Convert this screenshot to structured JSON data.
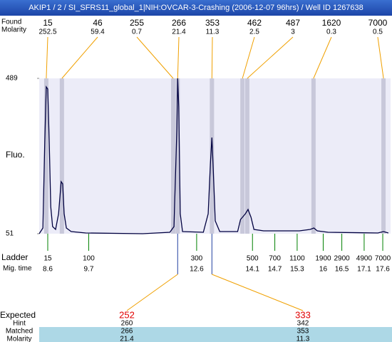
{
  "header": {
    "title": "AKIP1 / 2 / SI_SFRS11_global_1|NIH:OVCAR-3-Crashing (2006-12-07 96hrs) / Well ID 1267638"
  },
  "chart_data": {
    "type": "electropherogram",
    "y_label": "Fluo.",
    "ylim": [
      51,
      489
    ],
    "yticks": [
      51,
      489
    ],
    "xlim": [
      8.37,
      17.81
    ],
    "peaks": {
      "label": "Found",
      "molarity_label": "Molarity",
      "color": "#f0a000",
      "band_color": "#c8c8da",
      "sizes": [
        15,
        46,
        255,
        266,
        353,
        462,
        487,
        1620,
        7000
      ],
      "molarities": [
        252.5,
        59.4,
        0.7,
        21.4,
        11.3,
        2.5,
        3,
        0.3,
        0.5
      ],
      "times": [
        8.56,
        8.98,
        11.97,
        12.09,
        13.01,
        13.83,
        13.96,
        15.74,
        17.62
      ]
    },
    "trace": {
      "color": "#000040",
      "x": [
        8.37,
        8.47,
        8.52,
        8.56,
        8.6,
        8.64,
        8.68,
        8.73,
        8.81,
        8.89,
        8.96,
        9.0,
        9.04,
        9.1,
        9.23,
        9.62,
        11.15,
        11.88,
        11.99,
        12.07,
        12.09,
        12.12,
        12.16,
        12.22,
        12.78,
        12.91,
        12.97,
        13.01,
        13.04,
        13.1,
        13.22,
        13.7,
        13.78,
        13.83,
        13.91,
        13.98,
        14.06,
        14.14,
        14.4,
        15.36,
        15.65,
        15.75,
        15.84,
        16.13,
        17.47,
        17.62,
        17.75
      ],
      "values": [
        51,
        67.1,
        308.2,
        464.9,
        458.8,
        308.2,
        127.3,
        71.1,
        63.1,
        107.3,
        197.7,
        191.6,
        107.3,
        67.1,
        57,
        53,
        51,
        55,
        71.1,
        348.3,
        489,
        408.6,
        107.3,
        57,
        55,
        107.3,
        247.9,
        322.2,
        247.9,
        87.2,
        57,
        57,
        91.2,
        97.2,
        107.3,
        119.3,
        97.2,
        63.1,
        59,
        59,
        63.1,
        67.1,
        59,
        55,
        53,
        57,
        53
      ]
    },
    "ladder": {
      "label": "Ladder",
      "time_label": "Mig. time",
      "color": "#008000",
      "sizes": [
        15,
        100,
        300,
        500,
        700,
        1100,
        1900,
        2900,
        4900,
        7000
      ],
      "times": [
        8.6,
        9.7,
        12.6,
        14.1,
        14.7,
        15.3,
        16,
        16.5,
        17.1,
        17.6
      ]
    },
    "expected": {
      "label": "Expected",
      "values": [
        252,
        333
      ],
      "color": "#e00000",
      "rows": [
        {
          "label": "Hint",
          "values": [
            260,
            342
          ]
        },
        {
          "label": "Matched",
          "values": [
            266,
            353
          ]
        },
        {
          "label": "Molarity",
          "values": [
            21.4,
            11.3
          ]
        }
      ]
    }
  }
}
